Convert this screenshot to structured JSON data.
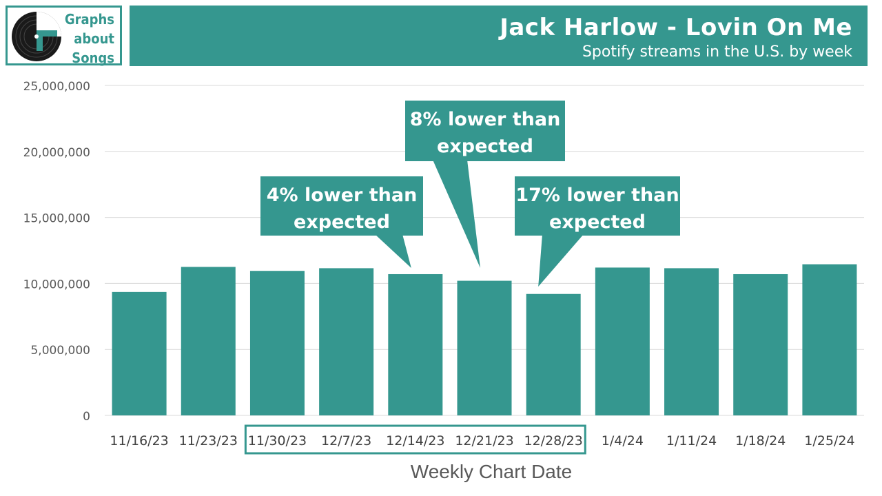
{
  "logo": {
    "line1": "Graphs",
    "line2": "about",
    "line3": "Songs"
  },
  "header": {
    "title": "Jack Harlow - Lovin On Me",
    "subtitle": "Spotify streams in the U.S. by week"
  },
  "colors": {
    "bar": "#35978f",
    "grid": "#d9d9d9",
    "axis_text": "#595959"
  },
  "chart_data": {
    "type": "bar",
    "title": "",
    "xlabel": "Weekly Chart Date",
    "ylabel": "",
    "ylim": [
      0,
      25000000
    ],
    "yticks": [
      0,
      5000000,
      10000000,
      15000000,
      20000000,
      25000000
    ],
    "ytick_labels": [
      "0",
      "5,000,000",
      "10,000,000",
      "15,000,000",
      "20,000,000",
      "25,000,000"
    ],
    "grid": true,
    "categories": [
      "11/16/23",
      "11/23/23",
      "11/30/23",
      "12/7/23",
      "12/14/23",
      "12/21/23",
      "12/28/23",
      "1/4/24",
      "1/11/24",
      "1/18/24",
      "1/25/24"
    ],
    "values": [
      9350000,
      11250000,
      10950000,
      11150000,
      10700000,
      10200000,
      9200000,
      11200000,
      11150000,
      10700000,
      11450000
    ],
    "highlight_range": [
      2,
      6
    ],
    "annotations": [
      {
        "line1": "4% lower than",
        "line2": "expected",
        "target": "12/14/23"
      },
      {
        "line1": "8% lower than",
        "line2": "expected",
        "target": "12/21/23"
      },
      {
        "line1": "17% lower than",
        "line2": "expected",
        "target": "12/28/23"
      }
    ]
  }
}
